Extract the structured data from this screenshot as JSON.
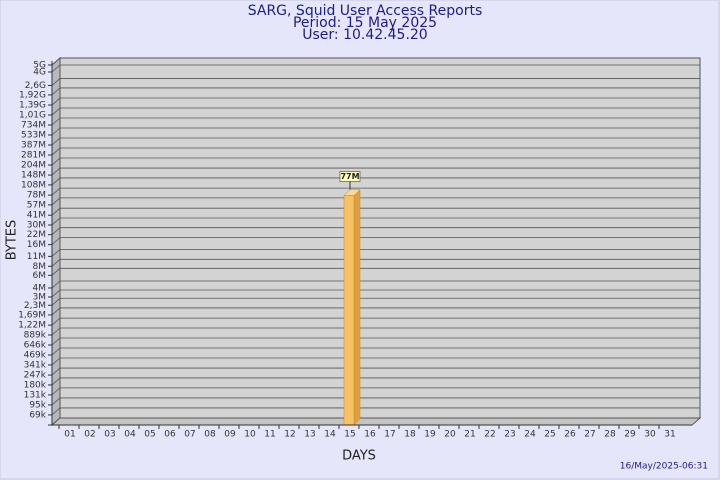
{
  "chart_data": {
    "type": "bar",
    "title": "SARG, Squid User Access Reports",
    "subtitle": [
      "Period: 15 May 2025",
      "User: 10.42.45.20"
    ],
    "x_label": "DAYS",
    "y_label": "BYTES",
    "footer": "16/May/2025-06:31",
    "categories": [
      "01",
      "02",
      "03",
      "04",
      "05",
      "06",
      "07",
      "08",
      "09",
      "10",
      "11",
      "12",
      "13",
      "14",
      "15",
      "16",
      "17",
      "18",
      "19",
      "20",
      "21",
      "22",
      "23",
      "24",
      "25",
      "26",
      "27",
      "28",
      "29",
      "30",
      "31"
    ],
    "values": [
      null,
      null,
      null,
      null,
      null,
      null,
      null,
      null,
      null,
      null,
      null,
      null,
      null,
      null,
      77000000,
      null,
      null,
      null,
      null,
      null,
      null,
      null,
      null,
      null,
      null,
      null,
      null,
      null,
      null,
      null,
      null
    ],
    "value_labels": [
      null,
      null,
      null,
      null,
      null,
      null,
      null,
      null,
      null,
      null,
      null,
      null,
      null,
      null,
      "77M",
      null,
      null,
      null,
      null,
      null,
      null,
      null,
      null,
      null,
      null,
      null,
      null,
      null,
      null,
      null,
      null
    ],
    "color": "#f7c266",
    "log_scale": true,
    "grid": true,
    "ylim": [
      50000,
      5000000000
    ],
    "yticks": [
      {
        "value": 69000,
        "label": "69k"
      },
      {
        "value": 95000,
        "label": "95k"
      },
      {
        "value": 131000,
        "label": "131k"
      },
      {
        "value": 180000,
        "label": "180k"
      },
      {
        "value": 247000,
        "label": "247k"
      },
      {
        "value": 341000,
        "label": "341k"
      },
      {
        "value": 469000,
        "label": "469k"
      },
      {
        "value": 646000,
        "label": "646k"
      },
      {
        "value": 889000,
        "label": "889k"
      },
      {
        "value": 1220000,
        "label": "1,22M"
      },
      {
        "value": 1690000,
        "label": "1,69M"
      },
      {
        "value": 2300000,
        "label": "2,3M"
      },
      {
        "value": 3000000,
        "label": "3M"
      },
      {
        "value": 4000000,
        "label": "4M"
      },
      {
        "value": 6000000,
        "label": "6M"
      },
      {
        "value": 8000000,
        "label": "8M"
      },
      {
        "value": 11000000,
        "label": "11M"
      },
      {
        "value": 16000000,
        "label": "16M"
      },
      {
        "value": 22000000,
        "label": "22M"
      },
      {
        "value": 30000000,
        "label": "30M"
      },
      {
        "value": 41000000,
        "label": "41M"
      },
      {
        "value": 57000000,
        "label": "57M"
      },
      {
        "value": 78000000,
        "label": "78M"
      },
      {
        "value": 108000000,
        "label": "108M"
      },
      {
        "value": 148000000,
        "label": "148M"
      },
      {
        "value": 204000000,
        "label": "204M"
      },
      {
        "value": 281000000,
        "label": "281M"
      },
      {
        "value": 387000000,
        "label": "387M"
      },
      {
        "value": 533000000,
        "label": "533M"
      },
      {
        "value": 734000000,
        "label": "734M"
      },
      {
        "value": 1010000000,
        "label": "1,01G"
      },
      {
        "value": 1390000000,
        "label": "1,39G"
      },
      {
        "value": 1920000000,
        "label": "1,92G"
      },
      {
        "value": 2600000000,
        "label": "2,6G"
      },
      {
        "value": 4000000000,
        "label": "4G"
      },
      {
        "value": 5000000000,
        "label": "5G"
      }
    ]
  }
}
